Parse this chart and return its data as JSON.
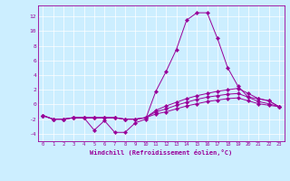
{
  "xlabel": "Windchill (Refroidissement éolien,°C)",
  "bg_color": "#cceeff",
  "line_color": "#990099",
  "xlim": [
    -0.5,
    23.5
  ],
  "ylim": [
    -5,
    13.5
  ],
  "xticks": [
    0,
    1,
    2,
    3,
    4,
    5,
    6,
    7,
    8,
    9,
    10,
    11,
    12,
    13,
    14,
    15,
    16,
    17,
    18,
    19,
    20,
    21,
    22,
    23
  ],
  "yticks": [
    -4,
    -2,
    0,
    2,
    4,
    6,
    8,
    10,
    12
  ],
  "x": [
    0,
    1,
    2,
    3,
    4,
    5,
    6,
    7,
    8,
    9,
    10,
    11,
    12,
    13,
    14,
    15,
    16,
    17,
    18,
    19,
    20,
    21,
    22,
    23
  ],
  "line1": [
    -1.5,
    -2,
    -2,
    -1.8,
    -1.8,
    -3.5,
    -2.2,
    -3.8,
    -3.8,
    -2.5,
    -2,
    1.8,
    4.5,
    7.5,
    11.5,
    12.5,
    12.5,
    9,
    5,
    2.5,
    1,
    0.8,
    0.5,
    -0.3
  ],
  "line2": [
    -1.5,
    -2,
    -2,
    -1.8,
    -1.8,
    -1.8,
    -1.8,
    -1.8,
    -2,
    -2,
    -1.8,
    -0.8,
    -0.2,
    0.3,
    0.8,
    1.2,
    1.5,
    1.8,
    2.0,
    2.2,
    1.5,
    0.8,
    0.5,
    -0.3
  ],
  "line3": [
    -1.5,
    -2,
    -2,
    -1.8,
    -1.8,
    -1.8,
    -1.8,
    -1.8,
    -2,
    -2,
    -1.8,
    -1.0,
    -0.6,
    -0.1,
    0.3,
    0.7,
    1.0,
    1.2,
    1.4,
    1.5,
    1.0,
    0.4,
    0.1,
    -0.3
  ],
  "line4": [
    -1.5,
    -2,
    -2,
    -1.8,
    -1.8,
    -1.8,
    -1.8,
    -1.8,
    -2,
    -2,
    -1.8,
    -1.3,
    -1.0,
    -0.6,
    -0.2,
    0.1,
    0.4,
    0.6,
    0.8,
    0.9,
    0.5,
    0.1,
    -0.1,
    -0.3
  ]
}
